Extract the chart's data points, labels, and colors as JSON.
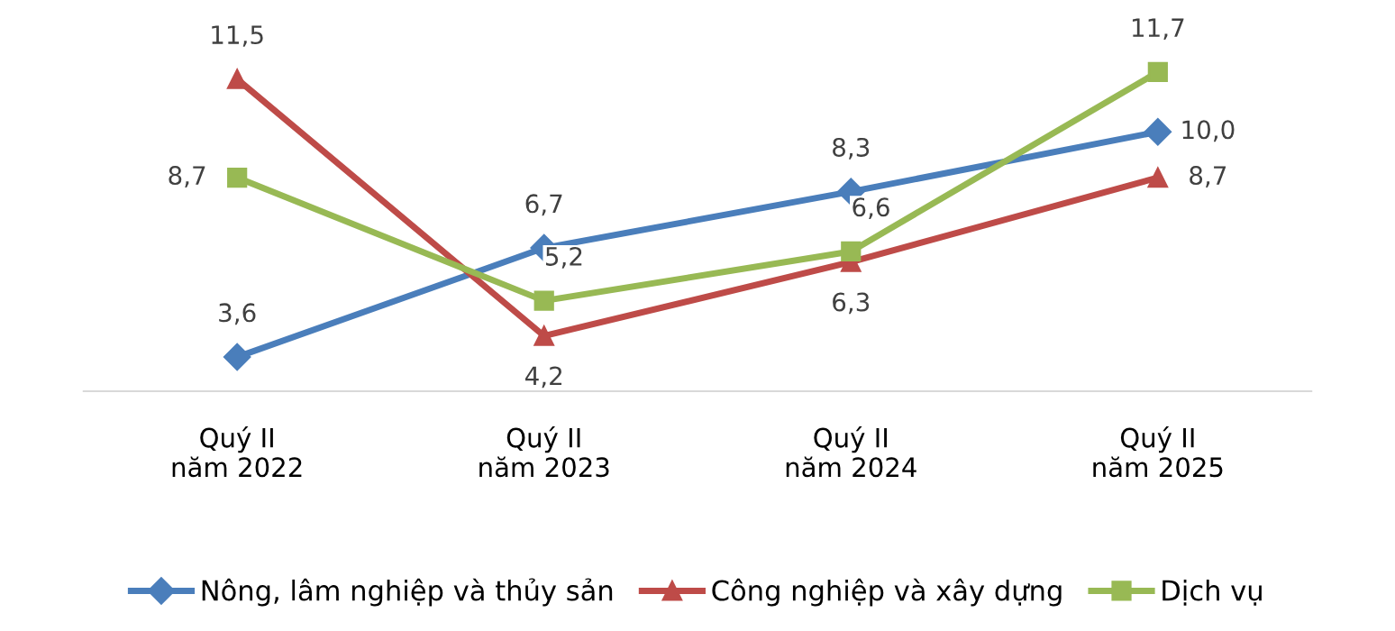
{
  "chart_data": {
    "type": "line",
    "categories": [
      "Quý II\nnăm 2022",
      "Quý II\nnăm 2023",
      "Quý II\nnăm 2024",
      "Quý II\nnăm 2025"
    ],
    "series": [
      {
        "name": "Nông, lâm nghiệp và thủy sản",
        "color": "#4a7ebb",
        "marker": "diamond",
        "values": [
          3.6,
          6.7,
          8.3,
          10.0
        ],
        "value_labels": [
          "3,6",
          "6,7",
          "8,3",
          "10,0"
        ]
      },
      {
        "name": "Công nghiệp và xây dựng",
        "color": "#be4b48",
        "marker": "triangle",
        "values": [
          11.5,
          4.2,
          6.3,
          8.7
        ],
        "value_labels": [
          "11,5",
          "4,2",
          "6,3",
          "8,7"
        ]
      },
      {
        "name": "Dịch vụ",
        "color": "#98b954",
        "marker": "square",
        "values": [
          8.7,
          5.2,
          6.6,
          11.7
        ],
        "value_labels": [
          "8,7",
          "5,2",
          "6,6",
          "11,7"
        ]
      }
    ],
    "tick_labels": "x",
    "legend": "bottom",
    "grid": false
  }
}
